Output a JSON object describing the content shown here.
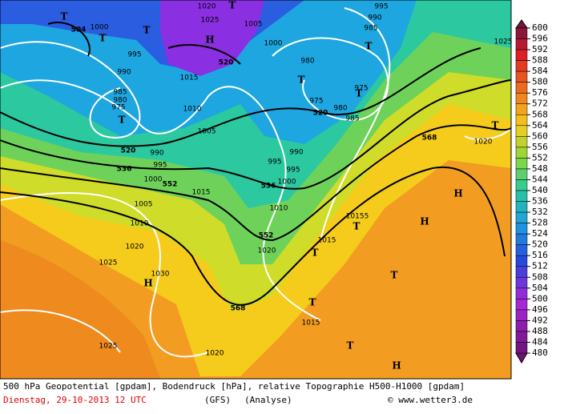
{
  "map": {
    "contour_labels": [
      "504",
      "520",
      "536",
      "552",
      "520",
      "520",
      "536",
      "552",
      "568",
      "568",
      "1000",
      "995",
      "990",
      "985",
      "980",
      "975",
      "1025",
      "1020",
      "1005",
      "1000",
      "995",
      "990",
      "985",
      "980",
      "975",
      "980",
      "985",
      "975",
      "1015",
      "1010",
      "1005",
      "990",
      "995",
      "1000",
      "1005",
      "1010",
      "1020",
      "1025",
      "1030",
      "1015",
      "990",
      "995",
      "995",
      "1000",
      "1010",
      "1020",
      "1015",
      "1015",
      "1025",
      "1020",
      "1020",
      "1025",
      "10155"
    ],
    "symbols": [
      "T",
      "T",
      "T",
      "H",
      "T",
      "T",
      "T",
      "T",
      "T",
      "T",
      "H",
      "H",
      "T",
      "T",
      "T",
      "H",
      "T",
      "T",
      "H"
    ]
  },
  "colorbar": {
    "ticks": [
      600,
      596,
      592,
      588,
      584,
      580,
      576,
      572,
      568,
      564,
      560,
      556,
      552,
      548,
      544,
      540,
      536,
      532,
      528,
      524,
      520,
      516,
      512,
      508,
      504,
      500,
      496,
      492,
      488,
      484,
      480
    ]
  },
  "footer": {
    "line1": "500 hPa Geopotential [gpdam], Bodendruck [hPa], relative Topographie H500-H1000 [gpdam]",
    "date": "Dienstag, 29-10-2013  12 UTC",
    "model": "(GFS)",
    "run": "(Analyse)",
    "credit": "© www.wetter3.de"
  }
}
